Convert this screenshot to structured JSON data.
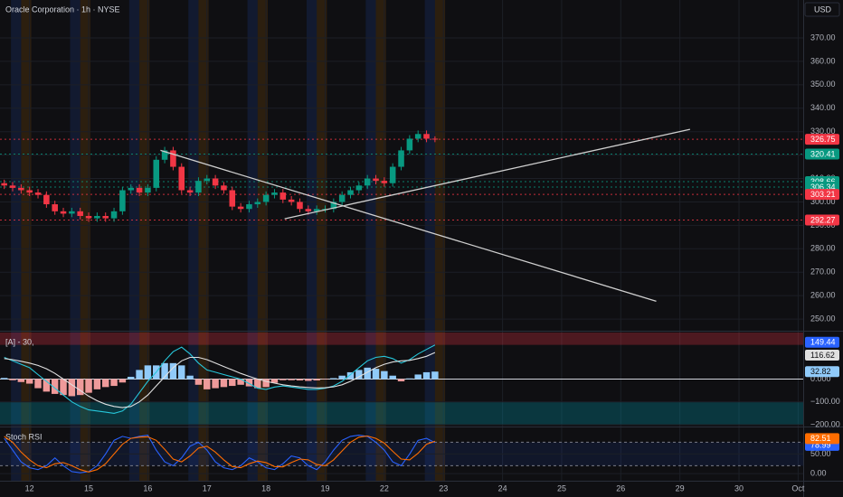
{
  "chart_data": [
    {
      "type": "candlestick",
      "title": "Oracle Corporation · 1h · NYSE",
      "currency": "USD",
      "x": [
        -3,
        -2,
        -1,
        0,
        1,
        2,
        3,
        4,
        5,
        6,
        7,
        8,
        9,
        10,
        11,
        12,
        13,
        14,
        15,
        16,
        17,
        18,
        19,
        20,
        21,
        22,
        23,
        24,
        25,
        26,
        27,
        28,
        29,
        30,
        31,
        32,
        33,
        34,
        35,
        36,
        37,
        38,
        39,
        40,
        41,
        42,
        43,
        44,
        45,
        46,
        47,
        48
      ],
      "open": [
        308,
        307,
        306,
        305,
        304,
        303,
        299,
        296,
        295,
        296,
        294,
        293,
        294,
        293,
        296,
        305,
        306,
        304,
        306,
        318,
        322,
        315,
        305,
        304,
        309,
        310,
        307,
        305,
        298,
        297,
        299,
        300,
        303,
        304,
        301,
        300,
        297,
        296,
        297,
        297,
        300,
        303,
        305,
        307,
        310,
        309,
        308,
        315,
        322,
        327,
        329,
        327
      ],
      "high": [
        309.5,
        308.5,
        307.5,
        306.5,
        305.5,
        304.5,
        300.5,
        297.5,
        297.5,
        297.5,
        295.5,
        295.5,
        295.5,
        297.5,
        306.5,
        307.5,
        307.5,
        307.5,
        319.5,
        323.5,
        323.5,
        316.5,
        306.5,
        310.5,
        311.5,
        311.5,
        308.5,
        306.5,
        299.5,
        300.5,
        301.5,
        304.5,
        305.5,
        305.5,
        302.5,
        301.5,
        298.5,
        298.5,
        298.5,
        301.5,
        304.5,
        306.5,
        308.5,
        311.5,
        311.5,
        310.5,
        316.5,
        323.5,
        328.5,
        330.5,
        330.5,
        328
      ],
      "low": [
        305.5,
        304.5,
        303.5,
        302.5,
        301.5,
        297.5,
        294.5,
        293.5,
        293.5,
        292.5,
        291.5,
        291.5,
        291.5,
        291.5,
        294.5,
        303.5,
        302.5,
        302.5,
        304.5,
        316.5,
        313.5,
        303.5,
        302.5,
        302.5,
        307.5,
        305.5,
        303.5,
        296.5,
        295.5,
        295.5,
        297.5,
        298.5,
        301.5,
        299.5,
        298.5,
        295.5,
        294.5,
        294.5,
        295.5,
        295.5,
        298.5,
        301.5,
        303.5,
        305.5,
        307.5,
        306.5,
        306.5,
        313.5,
        320.5,
        325.5,
        325.5,
        325.5
      ],
      "close": [
        307,
        306,
        305,
        304,
        303,
        299,
        296,
        295,
        296,
        294,
        293,
        294,
        293,
        296,
        305,
        306,
        304,
        306,
        318,
        322,
        315,
        305,
        304,
        309,
        310,
        307,
        305,
        298,
        297,
        299,
        300,
        303,
        304,
        301,
        300,
        297,
        296,
        297,
        297,
        300,
        303,
        305,
        307,
        310,
        309,
        308,
        315,
        322,
        327,
        329,
        327,
        326.75
      ],
      "up_color": "#089981",
      "down_color": "#f23645",
      "xlim": [
        -3.5,
        91.6
      ],
      "ylim": [
        245.4,
        386.2
      ],
      "xticks": [
        {
          "value": 0,
          "label": "12"
        },
        {
          "value": 7,
          "label": "15"
        },
        {
          "value": 14,
          "label": "16"
        },
        {
          "value": 21,
          "label": "17"
        },
        {
          "value": 28,
          "label": "18"
        },
        {
          "value": 35,
          "label": "19"
        },
        {
          "value": 42,
          "label": "22"
        },
        {
          "value": 49,
          "label": "23"
        },
        {
          "value": 56,
          "label": "24"
        },
        {
          "value": 63,
          "label": "25"
        },
        {
          "value": 70,
          "label": "26"
        },
        {
          "value": 77,
          "label": "29"
        },
        {
          "value": 84,
          "label": "30"
        },
        {
          "value": 91,
          "label": "Oct"
        }
      ],
      "yticks": [
        {
          "value": 250,
          "label": "250.00"
        },
        {
          "value": 260,
          "label": "260.00"
        },
        {
          "value": 270,
          "label": "270.00"
        },
        {
          "value": 280,
          "label": "280.00"
        },
        {
          "value": 290,
          "label": "290.00"
        },
        {
          "value": 300,
          "label": "300.00"
        },
        {
          "value": 310,
          "label": "310.00"
        },
        {
          "value": 320,
          "label": "320.00"
        },
        {
          "value": 330,
          "label": "330.00"
        },
        {
          "value": 340,
          "label": "340.00"
        },
        {
          "value": 350,
          "label": "350.00"
        },
        {
          "value": 360,
          "label": "360.00"
        },
        {
          "value": 370,
          "label": "370.00"
        }
      ],
      "levels": [
        {
          "value": 326.75,
          "color": "#f23645"
        },
        {
          "value": 320.41,
          "color": "#089981"
        },
        {
          "value": 308.66,
          "color": "#089981"
        },
        {
          "value": 306.34,
          "color": "#089981"
        },
        {
          "value": 303.21,
          "color": "#f23645"
        },
        {
          "value": 292.27,
          "color": "#f23645"
        }
      ],
      "trendlines": [
        {
          "x": [
            15.5,
            74.2
          ],
          "y": [
            322,
            257.6
          ]
        },
        {
          "x": [
            30.2,
            78.2
          ],
          "y": [
            292.8,
            331
          ]
        }
      ]
    },
    {
      "type": "macd",
      "title": "[A] - 30,",
      "ylim": [
        -204,
        204
      ],
      "yticks": [
        {
          "value": 0,
          "label": "0.000"
        },
        {
          "value": -100,
          "label": "−100.00"
        },
        {
          "value": -200,
          "label": "−200.00"
        }
      ],
      "upper_band": [
        150,
        204
      ],
      "lower_band": [
        -200,
        -100
      ],
      "series": [
        {
          "kind": "histogram",
          "color": "#90caf9",
          "negative_color": "#ef9a9a",
          "values": [
            5,
            -5,
            -13,
            -20,
            -40,
            -55,
            -65,
            -70,
            -75,
            -70,
            -60,
            -45,
            -35,
            -30,
            -15,
            10,
            40,
            60,
            60,
            70,
            70,
            60,
            15,
            -25,
            -45,
            -40,
            -35,
            -30,
            -25,
            -32,
            -40,
            -35,
            -17,
            -5,
            -5,
            -6,
            -8,
            -6,
            -2,
            4,
            15,
            30,
            40,
            50,
            45,
            35,
            15,
            -10,
            3,
            20,
            30,
            32.82
          ]
        },
        {
          "kind": "line",
          "color": "#26c6da",
          "values": [
            95,
            80,
            65,
            50,
            20,
            -10,
            -40,
            -70,
            -100,
            -120,
            -135,
            -140,
            -145,
            -150,
            -140,
            -110,
            -60,
            -10,
            30,
            80,
            120,
            140,
            110,
            70,
            40,
            30,
            20,
            10,
            0,
            -20,
            -40,
            -45,
            -35,
            -30,
            -35,
            -40,
            -45,
            -45,
            -40,
            -30,
            -10,
            20,
            50,
            80,
            95,
            100,
            90,
            70,
            85,
            110,
            130,
            149.44
          ]
        },
        {
          "kind": "line",
          "color": "#e0e0e0",
          "values": [
            90,
            85,
            78,
            70,
            60,
            45,
            25,
            0,
            -25,
            -50,
            -75,
            -95,
            -110,
            -120,
            -125,
            -120,
            -100,
            -70,
            -30,
            10,
            50,
            80,
            95,
            95,
            85,
            70,
            55,
            40,
            25,
            12,
            0,
            -10,
            -18,
            -25,
            -30,
            -34,
            -37,
            -39,
            -38,
            -34,
            -25,
            -10,
            10,
            30,
            50,
            65,
            75,
            80,
            82,
            90,
            100,
            116.62
          ]
        }
      ]
    },
    {
      "type": "stoch",
      "title": "Stoch RSI",
      "ylim": [
        -16,
        111
      ],
      "yticks": [
        {
          "value": 0,
          "label": "0.00"
        },
        {
          "value": 50,
          "label": "50.00"
        }
      ],
      "bands": [
        20,
        80
      ],
      "series": [
        {
          "kind": "line",
          "color": "#2962ff",
          "values": [
            90,
            60,
            30,
            15,
            10,
            20,
            40,
            20,
            5,
            2,
            5,
            20,
            50,
            85,
            95,
            90,
            95,
            98,
            60,
            30,
            20,
            40,
            70,
            80,
            60,
            30,
            15,
            10,
            20,
            40,
            30,
            15,
            10,
            25,
            45,
            40,
            20,
            10,
            30,
            60,
            85,
            95,
            98,
            95,
            80,
            60,
            30,
            20,
            50,
            85,
            90,
            78.99
          ]
        },
        {
          "kind": "line",
          "color": "#ff6d00",
          "values": [
            95,
            80,
            55,
            35,
            20,
            15,
            25,
            28,
            20,
            10,
            4,
            10,
            25,
            50,
            75,
            90,
            93,
            94,
            85,
            62,
            37,
            30,
            45,
            65,
            70,
            55,
            35,
            18,
            15,
            25,
            32,
            28,
            18,
            17,
            28,
            37,
            35,
            23,
            20,
            35,
            58,
            80,
            93,
            96,
            90,
            78,
            57,
            37,
            35,
            52,
            75,
            82.51
          ]
        }
      ]
    }
  ]
}
